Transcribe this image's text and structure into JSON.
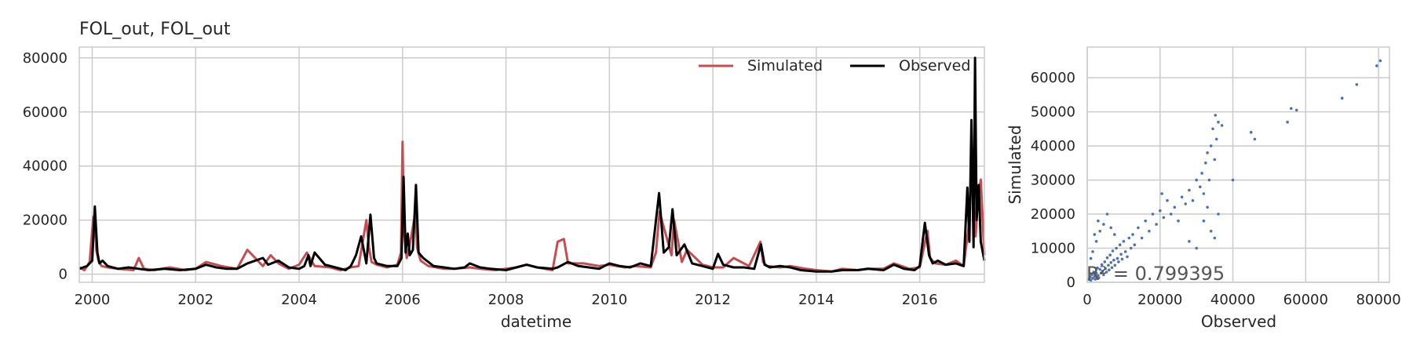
{
  "chart_data": [
    {
      "type": "line",
      "title": "FOL_out, FOL_out",
      "xlabel": "datetime",
      "ylabel": "",
      "xlim": [
        1999.75,
        2017.25
      ],
      "ylim": [
        -3000,
        84000
      ],
      "x_ticks": [
        2000,
        2002,
        2004,
        2006,
        2008,
        2010,
        2012,
        2014,
        2016
      ],
      "y_ticks": [
        0,
        20000,
        40000,
        60000,
        80000
      ],
      "grid": true,
      "legend_placement": "top-right",
      "series": [
        {
          "name": "Simulated",
          "color": "#c44e52",
          "x": [
            1999.75,
            1999.85,
            1999.95,
            2000.02,
            2000.05,
            2000.08,
            2000.12,
            2000.18,
            2000.3,
            2000.5,
            2000.8,
            2000.9,
            2001.0,
            2001.2,
            2001.5,
            2001.8,
            2002.0,
            2002.2,
            2002.5,
            2002.8,
            2003.0,
            2003.3,
            2003.45,
            2003.6,
            2003.8,
            2004.0,
            2004.15,
            2004.3,
            2004.6,
            2004.8,
            2005.0,
            2005.15,
            2005.3,
            2005.35,
            2005.4,
            2005.5,
            2005.7,
            2005.9,
            2005.97,
            2006.0,
            2006.03,
            2006.08,
            2006.15,
            2006.25,
            2006.28,
            2006.35,
            2006.5,
            2006.8,
            2007.0,
            2007.3,
            2007.5,
            2007.8,
            2008.0,
            2008.2,
            2008.4,
            2008.6,
            2008.9,
            2009.0,
            2009.12,
            2009.2,
            2009.5,
            2009.8,
            2010.0,
            2010.3,
            2010.5,
            2010.8,
            2010.9,
            2010.97,
            2011.1,
            2011.2,
            2011.25,
            2011.4,
            2011.5,
            2011.8,
            2012.0,
            2012.2,
            2012.4,
            2012.7,
            2012.92,
            2012.97,
            2013.05,
            2013.3,
            2013.5,
            2013.8,
            2014.0,
            2014.3,
            2014.5,
            2014.8,
            2015.0,
            2015.3,
            2015.5,
            2015.8,
            2016.0,
            2016.15,
            2016.2,
            2016.3,
            2016.5,
            2016.7,
            2016.85,
            2016.95,
            2017.0,
            2017.03,
            2017.08,
            2017.12,
            2017.18,
            2017.25
          ],
          "values": [
            2500,
            1500,
            4500,
            21000,
            22000,
            9000,
            5000,
            3000,
            2500,
            2000,
            1500,
            6000,
            2000,
            1500,
            2500,
            1500,
            2000,
            4500,
            3000,
            2000,
            9000,
            3000,
            7000,
            4000,
            2000,
            3500,
            8000,
            3000,
            2500,
            1500,
            2500,
            3000,
            20000,
            10000,
            4500,
            3500,
            2500,
            3500,
            8000,
            49000,
            15000,
            6000,
            12000,
            23000,
            10000,
            5000,
            3000,
            2000,
            2000,
            2500,
            2000,
            1500,
            2000,
            2500,
            3500,
            2500,
            1500,
            12000,
            13000,
            4000,
            4000,
            3000,
            3500,
            2500,
            3000,
            2500,
            8000,
            23000,
            14000,
            7000,
            20000,
            4500,
            9000,
            3500,
            2500,
            2500,
            6000,
            3000,
            12000,
            4500,
            3000,
            2500,
            3000,
            2000,
            1500,
            1000,
            2000,
            1500,
            2000,
            2000,
            4000,
            2000,
            2500,
            16000,
            6000,
            4000,
            3500,
            5000,
            3000,
            18000,
            39000,
            30000,
            14000,
            26000,
            35000,
            7000
          ]
        },
        {
          "name": "Observed",
          "color": "#000000",
          "x": [
            1999.75,
            1999.9,
            2000.0,
            2000.05,
            2000.1,
            2000.14,
            2000.2,
            2000.3,
            2000.5,
            2000.7,
            2000.9,
            2001.1,
            2001.4,
            2001.7,
            2002.0,
            2002.2,
            2002.4,
            2002.6,
            2002.8,
            2003.0,
            2003.3,
            2003.4,
            2003.6,
            2003.8,
            2004.0,
            2004.1,
            2004.18,
            2004.22,
            2004.3,
            2004.5,
            2004.7,
            2004.9,
            2005.0,
            2005.1,
            2005.2,
            2005.3,
            2005.38,
            2005.45,
            2005.5,
            2005.7,
            2005.9,
            2005.98,
            2006.02,
            2006.06,
            2006.1,
            2006.14,
            2006.2,
            2006.26,
            2006.31,
            2006.4,
            2006.6,
            2006.8,
            2007.0,
            2007.2,
            2007.3,
            2007.5,
            2007.7,
            2008.0,
            2008.2,
            2008.4,
            2008.6,
            2008.9,
            2009.0,
            2009.2,
            2009.4,
            2009.6,
            2009.8,
            2010.0,
            2010.2,
            2010.4,
            2010.6,
            2010.8,
            2010.96,
            2011.05,
            2011.15,
            2011.22,
            2011.3,
            2011.45,
            2011.6,
            2011.8,
            2012.0,
            2012.1,
            2012.2,
            2012.4,
            2012.6,
            2012.8,
            2012.93,
            2013.0,
            2013.1,
            2013.3,
            2013.5,
            2013.7,
            2014.0,
            2014.3,
            2014.5,
            2014.8,
            2015.0,
            2015.3,
            2015.5,
            2015.7,
            2015.9,
            2016.0,
            2016.1,
            2016.18,
            2016.25,
            2016.35,
            2016.5,
            2016.7,
            2016.85,
            2016.92,
            2016.96,
            2017.0,
            2017.04,
            2017.07,
            2017.1,
            2017.14,
            2017.18,
            2017.22,
            2017.25
          ],
          "values": [
            2000,
            3000,
            5000,
            25000,
            8000,
            4000,
            5000,
            3000,
            2000,
            2500,
            2000,
            1500,
            2000,
            1500,
            2000,
            3500,
            2500,
            2000,
            2000,
            4000,
            6000,
            3500,
            5000,
            2500,
            2000,
            3000,
            7000,
            3000,
            8000,
            3500,
            2500,
            1500,
            3000,
            7000,
            14000,
            4000,
            22000,
            6000,
            4000,
            3000,
            3000,
            6000,
            36000,
            8000,
            15000,
            7000,
            9000,
            33000,
            8000,
            6000,
            3000,
            2500,
            2000,
            2500,
            4000,
            2500,
            2000,
            1500,
            2500,
            3500,
            2500,
            2000,
            2500,
            4500,
            3000,
            2500,
            2000,
            4000,
            3000,
            2500,
            4000,
            3000,
            30000,
            8000,
            10000,
            24000,
            7000,
            11000,
            4000,
            3000,
            2000,
            7500,
            3500,
            2500,
            2500,
            2000,
            11000,
            3500,
            2500,
            3000,
            2500,
            1500,
            1000,
            1000,
            1500,
            1500,
            2000,
            1500,
            3500,
            2000,
            1500,
            3000,
            19000,
            7000,
            4000,
            5000,
            3500,
            4000,
            3000,
            32000,
            12000,
            57000,
            10000,
            80000,
            20000,
            33000,
            12000,
            8000,
            5000
          ]
        }
      ]
    },
    {
      "type": "scatter",
      "title": "",
      "xlabel": "Observed",
      "ylabel": "Simulated",
      "xlim": [
        0,
        83000
      ],
      "ylim": [
        0,
        69000
      ],
      "x_ticks": [
        0,
        20000,
        40000,
        60000,
        80000
      ],
      "y_ticks": [
        0,
        10000,
        20000,
        30000,
        40000,
        50000,
        60000
      ],
      "grid": true,
      "color": "#4c72b0",
      "annotation": "R² = 0.799395",
      "points": [
        [
          500,
          800
        ],
        [
          800,
          1500
        ],
        [
          1000,
          600
        ],
        [
          1200,
          2200
        ],
        [
          1500,
          1200
        ],
        [
          1800,
          3000
        ],
        [
          2000,
          1800
        ],
        [
          2200,
          900
        ],
        [
          2500,
          2600
        ],
        [
          2800,
          4200
        ],
        [
          3000,
          2000
        ],
        [
          3200,
          1300
        ],
        [
          3500,
          3800
        ],
        [
          3800,
          2700
        ],
        [
          4000,
          5200
        ],
        [
          4200,
          3300
        ],
        [
          4500,
          2200
        ],
        [
          4800,
          6000
        ],
        [
          5000,
          4000
        ],
        [
          5300,
          3000
        ],
        [
          5500,
          7200
        ],
        [
          5800,
          5000
        ],
        [
          6000,
          3600
        ],
        [
          6300,
          8000
        ],
        [
          6500,
          5800
        ],
        [
          6800,
          4300
        ],
        [
          7000,
          9200
        ],
        [
          7300,
          6500
        ],
        [
          7600,
          5000
        ],
        [
          8000,
          10000
        ],
        [
          8300,
          7000
        ],
        [
          8600,
          6000
        ],
        [
          9000,
          11000
        ],
        [
          9300,
          8200
        ],
        [
          9600,
          6800
        ],
        [
          10000,
          12000
        ],
        [
          10500,
          9000
        ],
        [
          11000,
          7500
        ],
        [
          11500,
          13000
        ],
        [
          12000,
          10000
        ],
        [
          1500,
          9000
        ],
        [
          2500,
          12000
        ],
        [
          3500,
          15000
        ],
        [
          4500,
          17000
        ],
        [
          5500,
          20000
        ],
        [
          2000,
          14000
        ],
        [
          1000,
          7000
        ],
        [
          6500,
          16000
        ],
        [
          3000,
          18000
        ],
        [
          7500,
          14000
        ],
        [
          12500,
          14000
        ],
        [
          13000,
          11000
        ],
        [
          14000,
          16000
        ],
        [
          15000,
          13000
        ],
        [
          16000,
          18000
        ],
        [
          17000,
          15000
        ],
        [
          18000,
          20000
        ],
        [
          19000,
          17000
        ],
        [
          20000,
          21000
        ],
        [
          21000,
          19000
        ],
        [
          20500,
          26000
        ],
        [
          22000,
          24000
        ],
        [
          23000,
          20000
        ],
        [
          24000,
          22000
        ],
        [
          25000,
          18000
        ],
        [
          26000,
          25000
        ],
        [
          27000,
          23000
        ],
        [
          28000,
          27000
        ],
        [
          29000,
          24000
        ],
        [
          30000,
          30000
        ],
        [
          31000,
          28000
        ],
        [
          31500,
          32000
        ],
        [
          32000,
          26000
        ],
        [
          32500,
          35000
        ],
        [
          33000,
          38000
        ],
        [
          33500,
          30000
        ],
        [
          34000,
          40000
        ],
        [
          34500,
          45000
        ],
        [
          35000,
          36000
        ],
        [
          35500,
          42000
        ],
        [
          35200,
          49000
        ],
        [
          36000,
          47000
        ],
        [
          37000,
          46000
        ],
        [
          33000,
          22000
        ],
        [
          34000,
          15000
        ],
        [
          35000,
          13000
        ],
        [
          30000,
          10000
        ],
        [
          28000,
          12000
        ],
        [
          36000,
          20000
        ],
        [
          32000,
          18000
        ],
        [
          45000,
          44000
        ],
        [
          46000,
          42000
        ],
        [
          55000,
          47000
        ],
        [
          56000,
          51000
        ],
        [
          57500,
          50500
        ],
        [
          70000,
          54000
        ],
        [
          74000,
          58000
        ],
        [
          79500,
          63500
        ],
        [
          80500,
          65000
        ],
        [
          40000,
          30000
        ]
      ]
    }
  ]
}
